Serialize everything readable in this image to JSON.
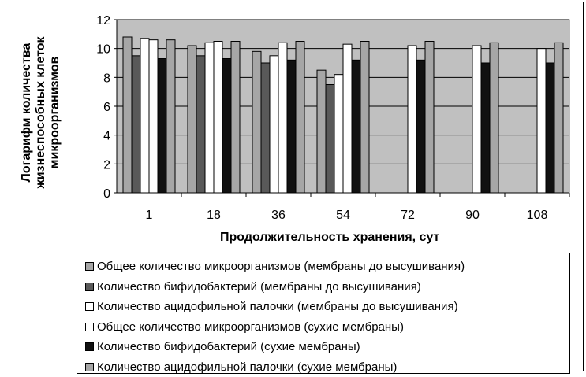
{
  "chart_data": {
    "type": "bar",
    "categories": [
      "1",
      "18",
      "36",
      "54",
      "72",
      "90",
      "108"
    ],
    "ylabel_lines": [
      "Логарифм количества",
      "жизнеспособных клеток",
      "микроорганизмов"
    ],
    "xlabel": "Продолжительность хранения, сут",
    "ylim": [
      0,
      12
    ],
    "yticks": [
      0,
      2,
      4,
      6,
      8,
      10,
      12
    ],
    "grid": true,
    "legend_placement": "bottom",
    "plot_background": "#c0c0c0",
    "series": [
      {
        "name": "Общее количество микроорганизмов (мембраны до высушивания)",
        "color": "#a6a6a6",
        "values": [
          10.8,
          10.2,
          9.8,
          8.5,
          null,
          null,
          null
        ]
      },
      {
        "name": "Количество бифидобактерий (мембраны до высушивания)",
        "color": "#595959",
        "values": [
          9.5,
          9.5,
          9.0,
          7.5,
          null,
          null,
          null
        ]
      },
      {
        "name": "Количество ацидофильной палочки (мембраны до высушивания)",
        "color": "#ffffff",
        "values": [
          10.7,
          10.4,
          9.5,
          8.2,
          null,
          null,
          null
        ]
      },
      {
        "name": "Общее количество микроорганизмов (сухие мембраны)",
        "color": "#ffffff",
        "values": [
          10.6,
          10.5,
          10.4,
          10.3,
          10.2,
          10.2,
          10.0
        ]
      },
      {
        "name": "Количество бифидобактерий (сухие мембраны)",
        "color": "#111111",
        "values": [
          9.3,
          9.3,
          9.2,
          9.2,
          9.2,
          9.0,
          9.0
        ]
      },
      {
        "name": "Количество ацидофильной палочки (сухие мембраны)",
        "color": "#a6a6a6",
        "values": [
          10.6,
          10.5,
          10.5,
          10.5,
          10.5,
          10.4,
          10.4
        ]
      }
    ]
  }
}
